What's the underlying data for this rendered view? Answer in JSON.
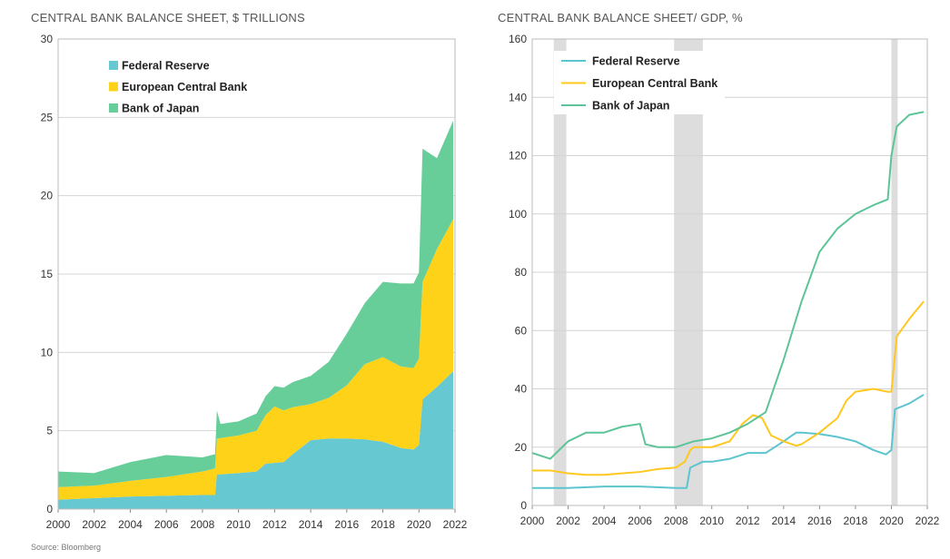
{
  "source": "Source: Bloomberg",
  "colors": {
    "fed_area": "#66C8D0",
    "ecb_area": "#FFD21A",
    "boj_area": "#67CE9A",
    "fed_line": "#5CC4CF",
    "ecb_line": "#FFC820",
    "boj_line": "#5CC498",
    "recession": "#DDDDDD",
    "grid": "#D4D4D4"
  },
  "chart_data": [
    {
      "type": "area",
      "stacked": true,
      "title": "CENTRAL BANK BALANCE SHEET, $ TRILLIONS",
      "xlim": [
        2000,
        2022
      ],
      "ylim": [
        0,
        30
      ],
      "xticks": [
        "2000",
        "2002",
        "2004",
        "2006",
        "2008",
        "2010",
        "2012",
        "2014",
        "2016",
        "2018",
        "2020",
        "2022"
      ],
      "yticks": [
        "0",
        "5",
        "10",
        "15",
        "20",
        "25",
        "30"
      ],
      "grid": true,
      "legend": "top-left",
      "series": [
        {
          "name": "Federal Reserve",
          "x": [
            2000,
            2002,
            2004,
            2006,
            2008,
            2008.7,
            2008.8,
            2010,
            2011,
            2011.5,
            2012.5,
            2013,
            2014,
            2015,
            2016,
            2017,
            2018,
            2019,
            2019.7,
            2020,
            2020.2,
            2021,
            2021.9
          ],
          "values": [
            0.6,
            0.7,
            0.8,
            0.85,
            0.9,
            0.9,
            2.2,
            2.3,
            2.4,
            2.9,
            3.0,
            3.5,
            4.4,
            4.5,
            4.5,
            4.45,
            4.3,
            3.9,
            3.8,
            4.1,
            7.0,
            7.8,
            8.8
          ]
        },
        {
          "name": "European Central Bank",
          "x": [
            2000,
            2002,
            2004,
            2006,
            2008,
            2008.7,
            2008.8,
            2010,
            2011,
            2012,
            2013,
            2014,
            2015,
            2016,
            2017,
            2018,
            2019,
            2019.7,
            2020,
            2020.2,
            2021,
            2021.9
          ],
          "values": [
            0.8,
            0.8,
            1.0,
            1.2,
            1.5,
            1.7,
            2.3,
            2.4,
            2.6,
            3.6,
            3.0,
            2.3,
            2.6,
            3.4,
            4.8,
            5.4,
            5.2,
            5.2,
            5.5,
            7.5,
            8.8,
            9.7
          ]
        },
        {
          "name": "Bank of Japan",
          "x": [
            2000,
            2002,
            2004,
            2006,
            2008,
            2008.7,
            2008.8,
            2009,
            2010,
            2011,
            2012,
            2013,
            2014,
            2015,
            2016,
            2017,
            2018,
            2019,
            2019.7,
            2020,
            2020.2,
            2021,
            2021.9
          ],
          "values": [
            1.0,
            0.8,
            1.2,
            1.4,
            0.9,
            0.9,
            1.8,
            0.9,
            0.9,
            1.1,
            1.3,
            1.6,
            1.8,
            2.3,
            3.3,
            3.9,
            4.8,
            5.3,
            5.4,
            5.5,
            8.5,
            5.8,
            6.3
          ]
        }
      ]
    },
    {
      "type": "line",
      "title": "CENTRAL BANK BALANCE SHEET/ GDP, %",
      "xlim": [
        2000,
        2022
      ],
      "ylim": [
        0,
        160
      ],
      "xticks": [
        "2000",
        "2002",
        "2004",
        "2006",
        "2008",
        "2010",
        "2012",
        "2014",
        "2016",
        "2018",
        "2020",
        "2022"
      ],
      "yticks": [
        "0",
        "20",
        "40",
        "60",
        "80",
        "100",
        "120",
        "140",
        "160"
      ],
      "grid": true,
      "legend": "top-left",
      "shaded_periods": [
        [
          2001.2,
          2001.9
        ],
        [
          2007.9,
          2009.5
        ],
        [
          2020.0,
          2020.35
        ]
      ],
      "series": [
        {
          "name": "Federal Reserve",
          "x": [
            2000,
            2002,
            2004,
            2006,
            2008,
            2008.6,
            2008.8,
            2009.5,
            2010,
            2011,
            2012,
            2013,
            2014,
            2014.7,
            2015,
            2016,
            2017,
            2018,
            2019,
            2019.7,
            2020,
            2020.2,
            2021,
            2021.8
          ],
          "values": [
            6,
            6,
            6.5,
            6.5,
            6,
            6,
            13,
            15,
            15,
            16,
            18,
            18,
            22,
            25,
            25,
            24.5,
            23.5,
            22,
            19,
            17.5,
            19,
            33,
            35,
            38
          ]
        },
        {
          "name": "European Central Bank",
          "x": [
            2000,
            2001,
            2002,
            2003,
            2004,
            2005,
            2006,
            2007,
            2008,
            2008.5,
            2008.8,
            2009,
            2010,
            2011,
            2011.7,
            2012.3,
            2012.8,
            2013.3,
            2014,
            2014.7,
            2015,
            2016,
            2017,
            2017.5,
            2018,
            2019,
            2019.8,
            2020,
            2020.3,
            2021,
            2021.8
          ],
          "values": [
            12,
            12,
            11,
            10.5,
            10.5,
            11,
            11.5,
            12.5,
            13,
            15,
            19,
            20,
            20,
            22,
            28,
            31,
            30,
            24,
            22,
            20.5,
            21,
            25,
            30,
            36,
            39,
            40,
            39,
            39,
            58,
            64,
            70
          ]
        },
        {
          "name": "Bank of Japan",
          "x": [
            2000,
            2001,
            2002,
            2003,
            2004,
            2005,
            2006,
            2006.3,
            2007,
            2008,
            2009,
            2010,
            2011,
            2012,
            2013,
            2014,
            2015,
            2016,
            2017,
            2018,
            2019,
            2019.8,
            2020,
            2020.3,
            2021,
            2021.8
          ],
          "values": [
            18,
            16,
            22,
            25,
            25,
            27,
            28,
            21,
            20,
            20,
            22,
            23,
            25,
            28,
            32,
            50,
            70,
            87,
            95,
            100,
            103,
            105,
            120,
            130,
            134,
            135
          ]
        }
      ]
    }
  ]
}
